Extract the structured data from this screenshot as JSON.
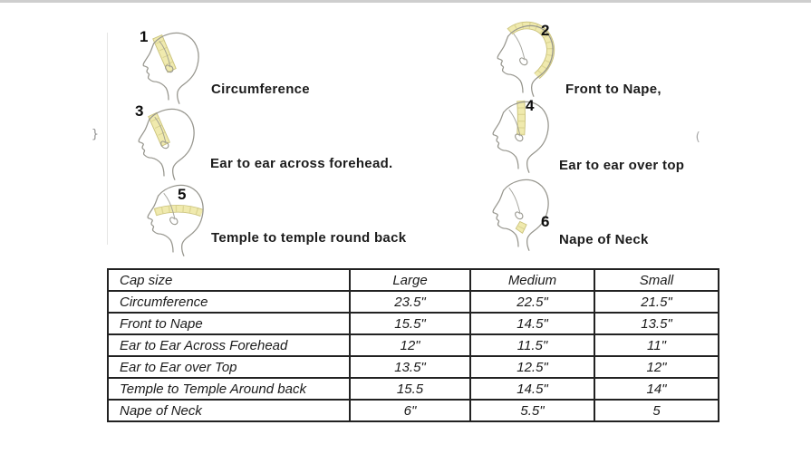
{
  "page": {
    "title": "Wig cap measurement guide",
    "background": "#ffffff"
  },
  "colors": {
    "tape_fill": "#f0eaae",
    "tape_edge": "#c9c17a",
    "tape_tick": "#d6cf8f",
    "head_outline": "#97968e",
    "text": "#1c1c1c",
    "table_border": "#1a1a1a"
  },
  "diagrams": [
    {
      "number": "1",
      "label": "Circumference",
      "icon": "head-profile-circumference-icon"
    },
    {
      "number": "2",
      "label": "Front to Nape,",
      "icon": "head-profile-front-to-nape-icon"
    },
    {
      "number": "3",
      "label": "Ear to ear across forehead.",
      "icon": "head-profile-ear-to-ear-forehead-icon"
    },
    {
      "number": "4",
      "label": "Ear to ear over top",
      "icon": "head-profile-ear-to-ear-over-top-icon"
    },
    {
      "number": "5",
      "label": "Temple to temple round back",
      "icon": "head-profile-temple-to-temple-icon"
    },
    {
      "number": "6",
      "label": "Nape of Neck",
      "icon": "head-profile-nape-of-neck-icon"
    }
  ],
  "table": {
    "columns": [
      "Cap size",
      "Large",
      "Medium",
      "Small"
    ],
    "rows": [
      [
        "Circumference",
        "23.5\"",
        "22.5\"",
        "21.5\""
      ],
      [
        "Front to Nape",
        "15.5\"",
        "14.5\"",
        "13.5\""
      ],
      [
        "Ear to Ear Across Forehead",
        "12\"",
        "11.5\"",
        "11\""
      ],
      [
        "Ear to Ear over Top",
        "13.5\"",
        "12.5\"",
        "12\""
      ],
      [
        "Temple to Temple Around back",
        "15.5",
        "14.5\"",
        "14\""
      ],
      [
        "Nape of Neck",
        "6\"",
        "5.5\"",
        "5"
      ]
    ]
  },
  "artifacts": {
    "left_mark": "}",
    "right_mark": "("
  }
}
